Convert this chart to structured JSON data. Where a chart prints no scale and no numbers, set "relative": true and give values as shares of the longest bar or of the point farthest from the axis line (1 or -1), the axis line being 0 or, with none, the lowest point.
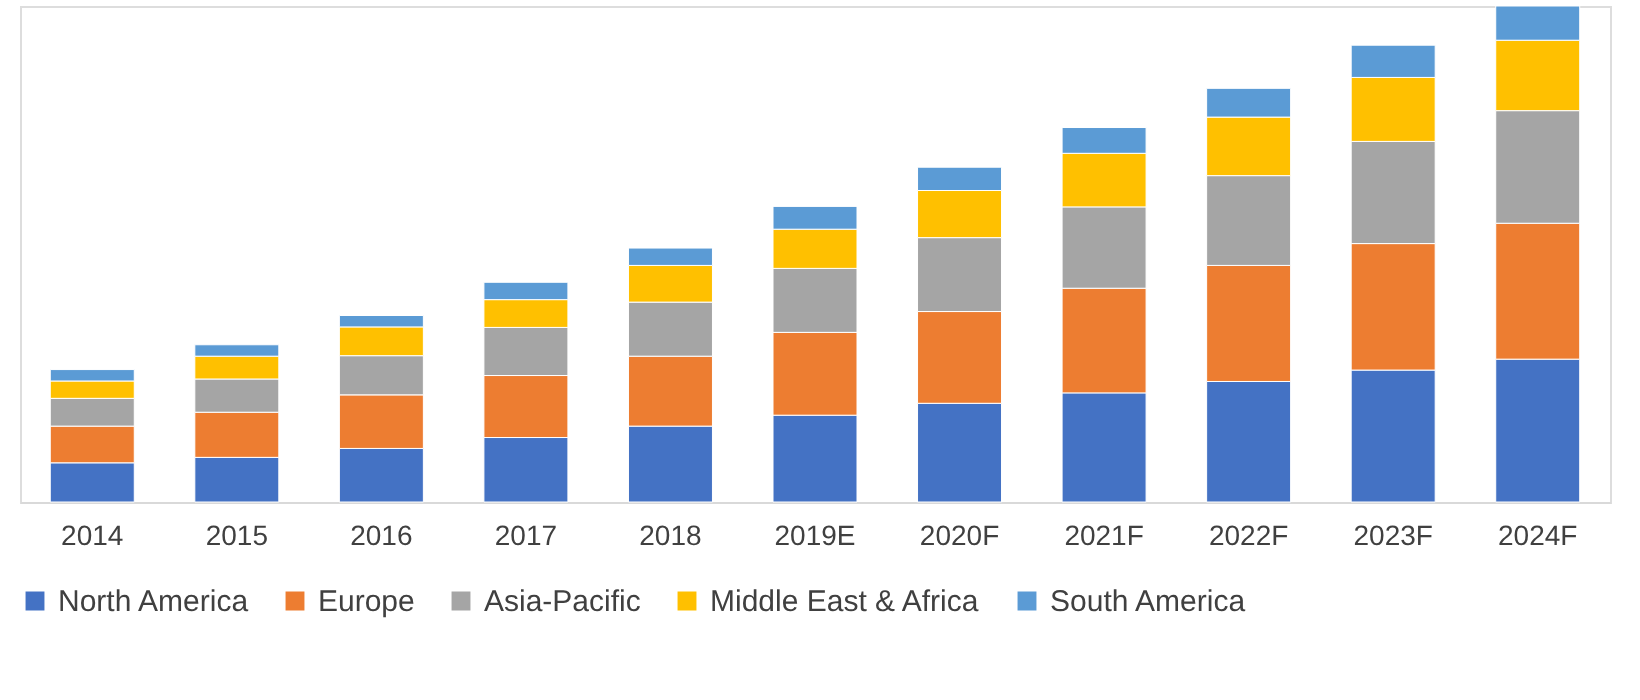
{
  "chart_data": {
    "type": "bar",
    "stacked": true,
    "relative": true,
    "legend": "bottom",
    "grid": false,
    "categories": [
      "2014",
      "2015",
      "2016",
      "2017",
      "2018",
      "2019E",
      "2020F",
      "2021F",
      "2022F",
      "2023F",
      "2024F"
    ],
    "series": [
      {
        "name": "North America",
        "color": "#4472c4",
        "values": [
          0.079,
          0.09,
          0.108,
          0.13,
          0.153,
          0.175,
          0.199,
          0.22,
          0.243,
          0.266,
          0.288
        ]
      },
      {
        "name": "Europe",
        "color": "#ed7d31",
        "values": [
          0.074,
          0.091,
          0.108,
          0.125,
          0.141,
          0.167,
          0.185,
          0.211,
          0.234,
          0.255,
          0.274
        ]
      },
      {
        "name": "Asia-Pacific",
        "color": "#a5a5a5",
        "values": [
          0.056,
          0.067,
          0.079,
          0.097,
          0.109,
          0.129,
          0.149,
          0.164,
          0.181,
          0.206,
          0.227
        ]
      },
      {
        "name": "Middle East & Africa",
        "color": "#ffc000",
        "values": [
          0.035,
          0.046,
          0.058,
          0.056,
          0.074,
          0.079,
          0.095,
          0.108,
          0.118,
          0.129,
          0.142
        ]
      },
      {
        "name": "South America",
        "color": "#5b9bd5",
        "values": [
          0.023,
          0.023,
          0.023,
          0.035,
          0.035,
          0.046,
          0.047,
          0.052,
          0.058,
          0.065,
          0.069
        ]
      }
    ]
  }
}
